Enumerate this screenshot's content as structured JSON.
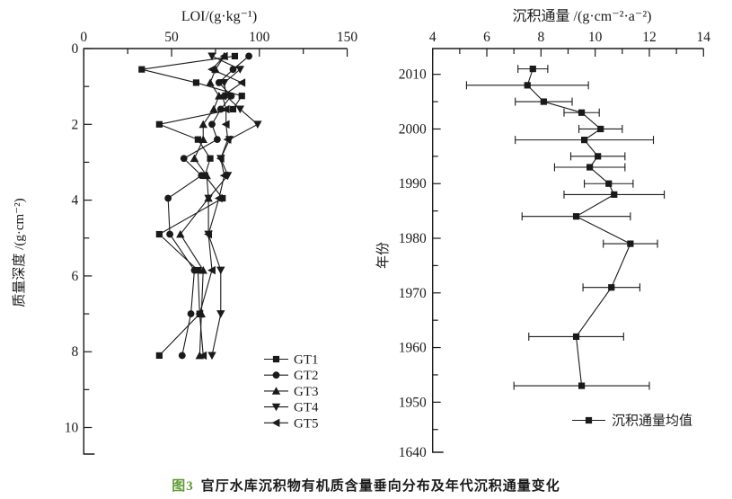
{
  "figure": {
    "caption_prefix": "图3",
    "caption_text": "官厅水库沉积物有机质含量垂向分布及年代沉积通量变化",
    "caption_prefix_color": "#5e9c33",
    "ink_color": "#1a1a1a"
  },
  "chart_data": [
    {
      "id": "loi-depth-profile",
      "type": "line",
      "title": "LOI/(g·kg⁻¹)",
      "xlabel": "LOI/(g·kg⁻¹)",
      "ylabel": "质量深度 /(g·cm⁻²)",
      "x_axis_position": "top",
      "y_axis_direction": "increasing-downward",
      "xlim": [
        0,
        150
      ],
      "x_major_ticks": [
        0,
        50,
        100,
        150
      ],
      "x_minor_ticks": [
        25,
        75,
        125
      ],
      "ylim": [
        0,
        10.7
      ],
      "y_major_ticks": [
        0,
        2,
        4,
        6,
        8,
        10
      ],
      "y_minor_ticks": [
        1,
        3,
        5,
        7,
        9
      ],
      "grid": false,
      "legend_position": "inside-bottom-right",
      "depths": [
        0.2,
        0.55,
        0.9,
        1.25,
        1.6,
        2.0,
        2.4,
        2.9,
        3.35,
        3.95,
        4.9,
        5.85,
        7.0,
        8.1
      ],
      "series": [
        {
          "name": "GT1",
          "marker": "square",
          "values": [
            86,
            33,
            64,
            90,
            85,
            43,
            65,
            72,
            69,
            79,
            43,
            65,
            66,
            43
          ]
        },
        {
          "name": "GT2",
          "marker": "circle",
          "values": [
            94,
            85,
            77,
            84,
            78,
            73,
            76,
            57,
            67,
            48,
            49,
            63,
            61,
            56
          ]
        },
        {
          "name": "GT3",
          "marker": "triangle-up",
          "values": [
            80,
            75,
            72,
            77,
            74,
            68,
            68,
            63,
            70,
            71,
            55,
            68,
            67,
            66
          ]
        },
        {
          "name": "GT4",
          "marker": "triangle-down",
          "values": [
            73,
            89,
            80,
            81,
            89,
            99,
            83,
            78,
            82,
            71,
            71,
            78,
            78,
            73
          ]
        },
        {
          "name": "GT5",
          "marker": "triangle-left",
          "values": [
            80,
            73,
            90,
            79,
            81,
            81,
            82,
            78,
            80,
            77,
            71,
            73,
            66,
            68
          ]
        }
      ]
    },
    {
      "id": "flux-by-year",
      "type": "line-errorbar",
      "title": "沉积通量 /(g·cm⁻²·a⁻²)",
      "xlabel": "沉积通量 /(g·cm⁻²·a⁻²)",
      "ylabel": "年份",
      "x_axis_position": "top",
      "xlim": [
        4,
        14
      ],
      "x_major_ticks": [
        4,
        6,
        8,
        10,
        12,
        14
      ],
      "x_minor_ticks": [
        5,
        7,
        9,
        11,
        13
      ],
      "y_major_tick_years": [
        2010,
        2000,
        1990,
        1980,
        1970,
        1960,
        1950
      ],
      "y_minor_tick_years": [
        2005,
        1995,
        1985,
        1975,
        1965,
        1955,
        1945
      ],
      "y_bottom_axis_label": "1640",
      "grid": false,
      "legend_label": "沉积通量均值",
      "legend_marker": "square",
      "legend_position": "inside-bottom-right",
      "points": [
        {
          "year": 2011,
          "value": 7.7,
          "err": 0.55
        },
        {
          "year": 2008,
          "value": 7.5,
          "err": 2.25
        },
        {
          "year": 2005,
          "value": 8.1,
          "err": 1.05
        },
        {
          "year": 2003,
          "value": 9.5,
          "err": 0.65
        },
        {
          "year": 2000,
          "value": 10.2,
          "err": 0.8
        },
        {
          "year": 1998,
          "value": 9.6,
          "err": 2.55
        },
        {
          "year": 1995,
          "value": 10.1,
          "err": 1.0
        },
        {
          "year": 1993,
          "value": 9.8,
          "err": 1.3
        },
        {
          "year": 1990,
          "value": 10.5,
          "err": 0.9
        },
        {
          "year": 1988,
          "value": 10.7,
          "err": 1.85
        },
        {
          "year": 1984,
          "value": 9.3,
          "err": 2.0
        },
        {
          "year": 1979,
          "value": 11.3,
          "err": 1.0
        },
        {
          "year": 1971,
          "value": 10.6,
          "err": 1.05
        },
        {
          "year": 1962,
          "value": 9.3,
          "err": 1.75
        },
        {
          "year": 1953,
          "value": 9.5,
          "err": 2.5
        }
      ]
    }
  ]
}
